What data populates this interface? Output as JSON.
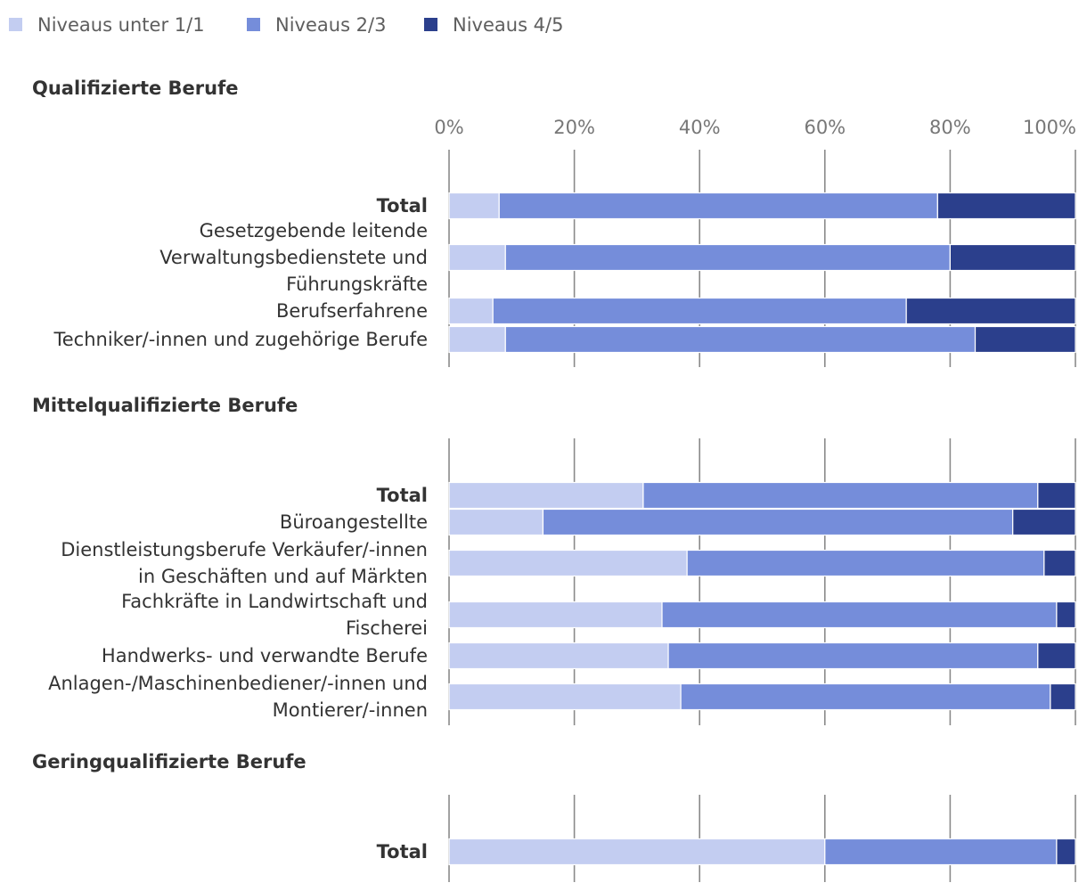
{
  "chart_data": {
    "type": "bar",
    "orientation": "horizontal",
    "stacked": true,
    "normalized": true,
    "legend": {
      "placement": "top-left",
      "items": [
        {
          "name": "Niveaus unter 1/1",
          "color": "#c3cdf1"
        },
        {
          "name": "Niveaus 2/3",
          "color": "#758dda"
        },
        {
          "name": "Niveaus 4/5",
          "color": "#2b3f8c"
        }
      ]
    },
    "x_ticks": [
      "0%",
      "20%",
      "40%",
      "60%",
      "80%",
      "100%"
    ],
    "xlim": [
      0,
      100
    ],
    "groups": [
      {
        "title": "Qualifizierte Berufe",
        "rows": [
          {
            "label": [
              "Total"
            ],
            "bold": true,
            "values": [
              8,
              70,
              22
            ]
          },
          {
            "label": [
              "Gesetzgebende leitende",
              "Verwaltungsbedienstete und",
              "Führungskräfte"
            ],
            "bold": false,
            "values": [
              9,
              71,
              20
            ]
          },
          {
            "label": [
              "Berufserfahrene"
            ],
            "bold": false,
            "values": [
              7,
              66,
              27
            ]
          },
          {
            "label": [
              "Techniker/-innen und zugehörige Berufe"
            ],
            "bold": false,
            "values": [
              9,
              75,
              16
            ]
          }
        ]
      },
      {
        "title": "Mittelqualifizierte Berufe",
        "rows": [
          {
            "label": [
              "Total"
            ],
            "bold": true,
            "values": [
              31,
              63,
              6
            ]
          },
          {
            "label": [
              "Büroangestellte"
            ],
            "bold": false,
            "values": [
              15,
              75,
              10
            ]
          },
          {
            "label": [
              "Dienstleistungsberufe Verkäufer/-innen",
              "in Geschäften und auf Märkten"
            ],
            "bold": false,
            "values": [
              38,
              57,
              5
            ]
          },
          {
            "label": [
              "Fachkräfte in Landwirtschaft und",
              "Fischerei"
            ],
            "bold": false,
            "values": [
              34,
              63,
              3
            ]
          },
          {
            "label": [
              "Handwerks- und verwandte Berufe"
            ],
            "bold": false,
            "values": [
              35,
              59,
              6
            ]
          },
          {
            "label": [
              "Anlagen-/Maschinenbediener/-innen und",
              "Montierer/-innen"
            ],
            "bold": false,
            "values": [
              37,
              59,
              4
            ]
          }
        ]
      },
      {
        "title": "Geringqualifizierte Berufe",
        "rows": [
          {
            "label": [
              "Total"
            ],
            "bold": true,
            "values": [
              60,
              37,
              3
            ]
          }
        ]
      }
    ]
  }
}
